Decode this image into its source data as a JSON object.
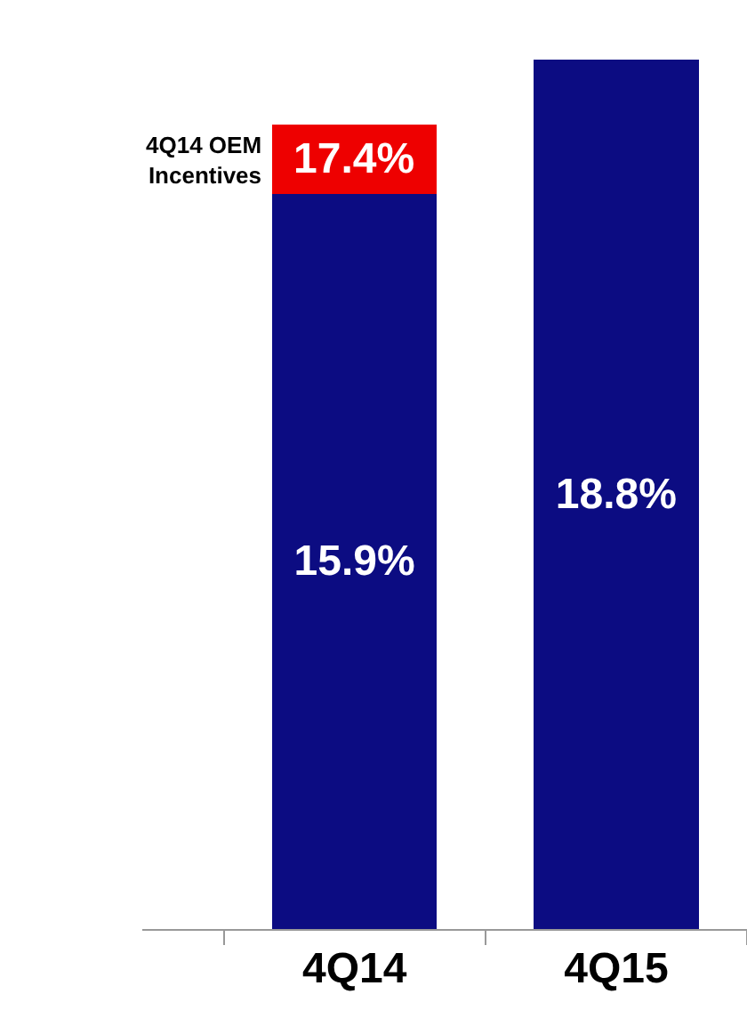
{
  "chart_data": {
    "type": "bar",
    "stacked": true,
    "legend": false,
    "tick_labels": "x",
    "categories": [
      "4Q14",
      "4Q15"
    ],
    "series": [
      {
        "color": "#0c0c82",
        "values": [
          15.9,
          18.8
        ],
        "value_labels": [
          "15.9%",
          "18.8%"
        ]
      },
      {
        "name": "4Q14 OEM Incentives",
        "color": "#ee0000",
        "values": [
          1.5,
          null
        ]
      }
    ],
    "totals": [
      "17.4%",
      null
    ]
  }
}
